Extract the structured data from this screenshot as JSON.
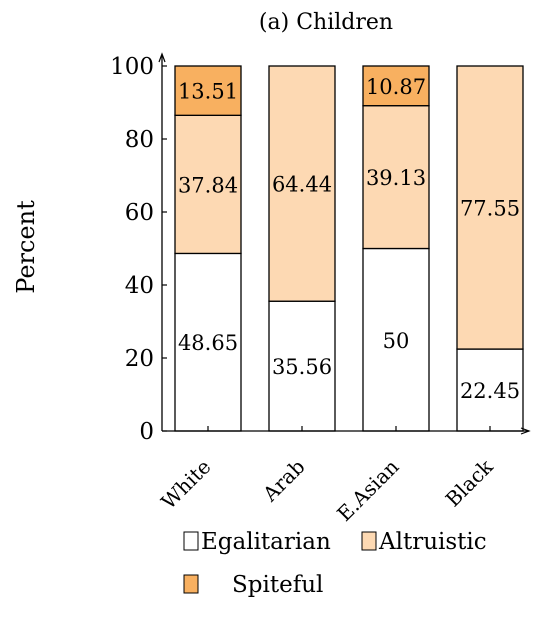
{
  "chart_data": {
    "type": "bar",
    "stacked": true,
    "title": "(a) Children",
    "ylabel": "Percent",
    "xlabel": "",
    "categories": [
      "White",
      "Arab",
      "E.Asian",
      "Black"
    ],
    "ylim": [
      0,
      100
    ],
    "yticks": [
      "0",
      "20",
      "40",
      "60",
      "80",
      "100"
    ],
    "series": [
      {
        "name": "Egalitarian",
        "values": [
          48.65,
          35.56,
          50,
          22.45
        ],
        "labels": [
          "48.65",
          "35.56",
          "50",
          "22.45"
        ],
        "color": "#ffffff"
      },
      {
        "name": "Altruistic",
        "values": [
          37.84,
          64.44,
          39.13,
          77.55
        ],
        "labels": [
          "37.84",
          "64.44",
          "39.13",
          "77.55"
        ],
        "color": "#fdd9b3"
      },
      {
        "name": "Spiteful",
        "values": [
          13.51,
          0,
          10.87,
          0
        ],
        "labels": [
          "13.51",
          "",
          "10.87",
          ""
        ],
        "color": "#f8b060"
      }
    ],
    "legend_position": "bottom",
    "grid": false
  }
}
